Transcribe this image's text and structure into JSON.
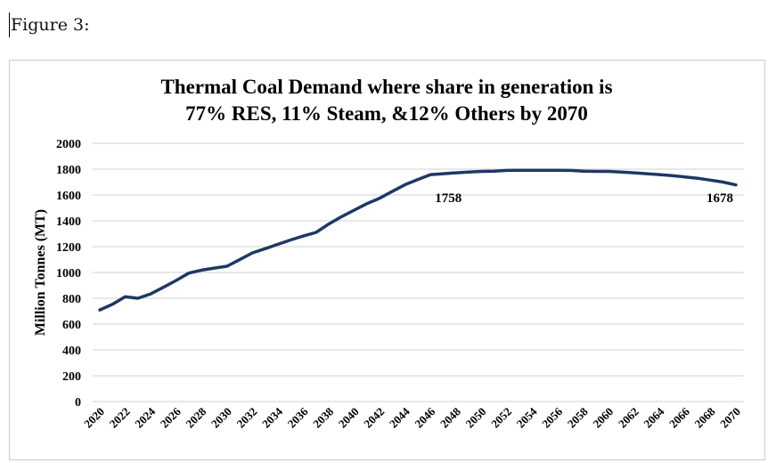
{
  "caption": "Figure 3:",
  "chart_data": {
    "type": "line",
    "title_lines": [
      "Thermal Coal Demand where share in generation is",
      "77% RES, 11% Steam, &12% Others by 2070"
    ],
    "xlabel": "",
    "ylabel": "Million Tonnes (MT)",
    "ylim": [
      0,
      2000
    ],
    "yticks": [
      0,
      200,
      400,
      600,
      800,
      1000,
      1200,
      1400,
      1600,
      1800,
      2000
    ],
    "xticks": [
      2020,
      2022,
      2024,
      2026,
      2028,
      2030,
      2032,
      2034,
      2036,
      2038,
      2040,
      2042,
      2044,
      2046,
      2048,
      2050,
      2052,
      2054,
      2056,
      2058,
      2060,
      2062,
      2064,
      2066,
      2068,
      2070
    ],
    "grid": true,
    "line_color": "#1f3864",
    "x": [
      2020,
      2021,
      2022,
      2023,
      2024,
      2025,
      2026,
      2027,
      2028,
      2029,
      2030,
      2031,
      2032,
      2033,
      2034,
      2035,
      2036,
      2037,
      2038,
      2039,
      2040,
      2041,
      2042,
      2043,
      2044,
      2045,
      2046,
      2047,
      2048,
      2049,
      2050,
      2051,
      2052,
      2053,
      2054,
      2055,
      2056,
      2057,
      2058,
      2059,
      2060,
      2061,
      2062,
      2063,
      2064,
      2065,
      2066,
      2067,
      2068,
      2069,
      2070
    ],
    "values": [
      710,
      754,
      812,
      800,
      834,
      885,
      938,
      995,
      1018,
      1034,
      1048,
      1099,
      1152,
      1184,
      1218,
      1252,
      1282,
      1310,
      1375,
      1432,
      1483,
      1533,
      1575,
      1628,
      1680,
      1720,
      1758,
      1765,
      1772,
      1778,
      1783,
      1785,
      1790,
      1792,
      1792,
      1792,
      1792,
      1790,
      1785,
      1783,
      1783,
      1778,
      1772,
      1765,
      1758,
      1750,
      1740,
      1730,
      1715,
      1700,
      1678
    ],
    "data_labels": [
      {
        "x": 2046,
        "text": "1758"
      },
      {
        "x": 2070,
        "text": "1678"
      }
    ]
  }
}
